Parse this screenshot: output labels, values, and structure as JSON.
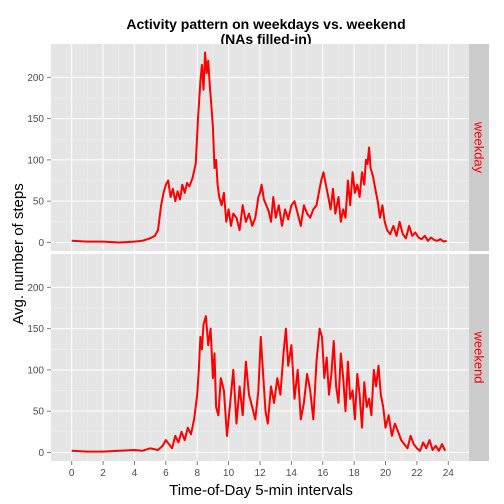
{
  "chart_data": {
    "type": "line",
    "title": [
      "Activity pattern on weekdays vs. weekend",
      "(NAs filled-in)"
    ],
    "xlabel": "Time-of-Day 5-min intervals",
    "ylabel": "Avg. number of steps",
    "xlim": [
      0,
      24
    ],
    "ylim": [
      0,
      230
    ],
    "x_ticks": [
      0,
      2,
      4,
      6,
      8,
      10,
      12,
      14,
      16,
      18,
      20,
      22,
      24
    ],
    "y_ticks": [
      0,
      50,
      100,
      150,
      200
    ],
    "grid": true,
    "line_color": "#ff0000",
    "facet_layout": "rows",
    "panels": [
      {
        "label": "weekday",
        "x": [
          0,
          1,
          2,
          3,
          4,
          4.5,
          5,
          5.3,
          5.5,
          5.7,
          5.85,
          6.0,
          6.15,
          6.3,
          6.45,
          6.6,
          6.75,
          6.9,
          7.05,
          7.2,
          7.35,
          7.5,
          7.7,
          7.9,
          8.05,
          8.2,
          8.3,
          8.4,
          8.5,
          8.6,
          8.7,
          8.8,
          8.9,
          9.0,
          9.1,
          9.2,
          9.3,
          9.4,
          9.55,
          9.7,
          9.85,
          10.0,
          10.15,
          10.3,
          10.5,
          10.7,
          10.9,
          11.1,
          11.3,
          11.5,
          11.7,
          11.9,
          12.0,
          12.1,
          12.25,
          12.4,
          12.55,
          12.7,
          12.85,
          13.0,
          13.2,
          13.4,
          13.6,
          13.8,
          14.0,
          14.2,
          14.4,
          14.6,
          14.8,
          15.0,
          15.2,
          15.4,
          15.6,
          15.75,
          15.9,
          16.05,
          16.2,
          16.35,
          16.5,
          16.65,
          16.8,
          17.0,
          17.15,
          17.3,
          17.45,
          17.6,
          17.75,
          17.9,
          18.05,
          18.2,
          18.35,
          18.5,
          18.65,
          18.75,
          18.85,
          18.95,
          19.05,
          19.2,
          19.35,
          19.5,
          19.65,
          19.8,
          19.95,
          20.1,
          20.3,
          20.5,
          20.7,
          20.9,
          21.1,
          21.3,
          21.5,
          21.7,
          21.9,
          22.1,
          22.3,
          22.5,
          22.7,
          22.9,
          23.1,
          23.3,
          23.5,
          23.7,
          23.9
        ],
        "y": [
          2,
          1,
          1,
          0,
          1,
          2,
          5,
          8,
          15,
          45,
          60,
          70,
          75,
          55,
          65,
          50,
          62,
          52,
          70,
          60,
          72,
          68,
          78,
          95,
          150,
          195,
          215,
          185,
          230,
          205,
          220,
          190,
          165,
          140,
          90,
          100,
          70,
          55,
          45,
          60,
          25,
          40,
          20,
          35,
          30,
          15,
          45,
          25,
          35,
          20,
          30,
          55,
          60,
          70,
          52,
          45,
          38,
          25,
          55,
          30,
          45,
          20,
          40,
          28,
          45,
          50,
          35,
          20,
          45,
          35,
          30,
          40,
          45,
          60,
          75,
          85,
          70,
          55,
          40,
          65,
          35,
          55,
          25,
          40,
          30,
          75,
          45,
          85,
          60,
          70,
          55,
          85,
          70,
          100,
          95,
          115,
          90,
          80,
          65,
          50,
          30,
          45,
          25,
          15,
          10,
          20,
          8,
          25,
          10,
          5,
          20,
          8,
          12,
          6,
          4,
          8,
          2,
          6,
          3,
          2,
          4,
          1,
          2
        ]
      },
      {
        "label": "weekend",
        "x": [
          0,
          1,
          2,
          3,
          4,
          4.5,
          5,
          5.5,
          5.8,
          6.0,
          6.2,
          6.4,
          6.6,
          6.8,
          7.0,
          7.2,
          7.4,
          7.6,
          7.8,
          8.0,
          8.1,
          8.2,
          8.3,
          8.4,
          8.55,
          8.7,
          8.85,
          9.0,
          9.1,
          9.2,
          9.35,
          9.5,
          9.7,
          9.9,
          10.1,
          10.3,
          10.5,
          10.7,
          10.9,
          11.1,
          11.3,
          11.5,
          11.7,
          11.9,
          12.05,
          12.2,
          12.35,
          12.5,
          12.7,
          12.9,
          13.1,
          13.3,
          13.5,
          13.65,
          13.8,
          14.0,
          14.2,
          14.4,
          14.6,
          14.8,
          15.0,
          15.2,
          15.4,
          15.6,
          15.8,
          15.95,
          16.1,
          16.25,
          16.4,
          16.55,
          16.7,
          16.85,
          17.0,
          17.15,
          17.3,
          17.45,
          17.6,
          17.75,
          17.9,
          18.05,
          18.2,
          18.35,
          18.5,
          18.65,
          18.8,
          18.95,
          19.1,
          19.25,
          19.4,
          19.55,
          19.7,
          19.85,
          20.0,
          20.2,
          20.4,
          20.6,
          20.8,
          21.0,
          21.2,
          21.4,
          21.6,
          21.8,
          22.0,
          22.2,
          22.4,
          22.6,
          22.8,
          23.0,
          23.2,
          23.4,
          23.6,
          23.8
        ],
        "y": [
          2,
          1,
          1,
          2,
          3,
          2,
          5,
          3,
          8,
          15,
          10,
          5,
          20,
          12,
          25,
          15,
          30,
          22,
          40,
          70,
          100,
          140,
          125,
          155,
          165,
          130,
          150,
          90,
          120,
          55,
          45,
          90,
          75,
          20,
          60,
          100,
          35,
          80,
          45,
          110,
          70,
          55,
          40,
          75,
          140,
          95,
          50,
          35,
          80,
          60,
          90,
          70,
          120,
          150,
          105,
          130,
          65,
          100,
          40,
          60,
          95,
          75,
          40,
          110,
          150,
          140,
          90,
          115,
          70,
          95,
          135,
          80,
          60,
          120,
          90,
          50,
          110,
          65,
          75,
          40,
          95,
          70,
          30,
          85,
          55,
          65,
          45,
          100,
          80,
          105,
          70,
          55,
          30,
          45,
          20,
          35,
          25,
          15,
          10,
          5,
          20,
          10,
          5,
          2,
          12,
          5,
          15,
          3,
          8,
          2,
          10,
          2
        ]
      }
    ]
  }
}
